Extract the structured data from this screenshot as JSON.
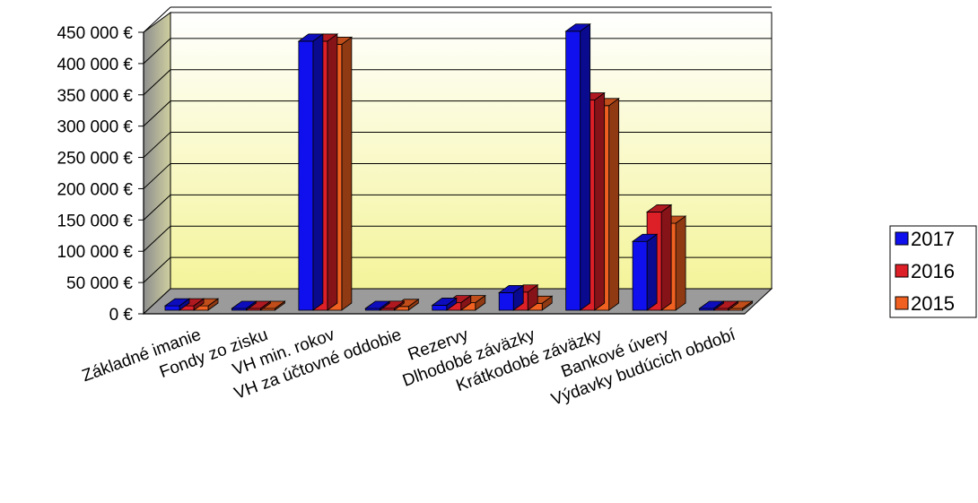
{
  "chart_data": {
    "type": "bar",
    "three_d": true,
    "categories": [
      "Základné imanie",
      "Fondy zo zisku",
      "VH min. rokov",
      "VH za účtovné oddobie",
      "Rezervy",
      "Dlhodobé záväzky",
      "Krátkodobé záväzky",
      "Bankové úvery",
      "Výdavky budúcich období"
    ],
    "series": [
      {
        "name": "2017",
        "color": "#1010ee",
        "values": [
          7000,
          1000,
          430000,
          2000,
          8000,
          28000,
          446000,
          110000,
          1000
        ]
      },
      {
        "name": "2016",
        "color": "#dd1f28",
        "values": [
          7000,
          1000,
          430000,
          3000,
          12000,
          29000,
          336000,
          157000,
          1000
        ]
      },
      {
        "name": "2015",
        "color": "#f06020",
        "values": [
          7000,
          1000,
          425000,
          6000,
          12000,
          11000,
          327000,
          139000,
          1000
        ]
      }
    ],
    "yticks": [
      "0 €",
      "50 000 €",
      "100 000 €",
      "150 000 €",
      "200 000 €",
      "250 000 €",
      "300 000 €",
      "350 000 €",
      "400 000 €",
      "450 000 €"
    ],
    "ylim": [
      0,
      450000
    ],
    "grid": true,
    "legend": "right"
  }
}
